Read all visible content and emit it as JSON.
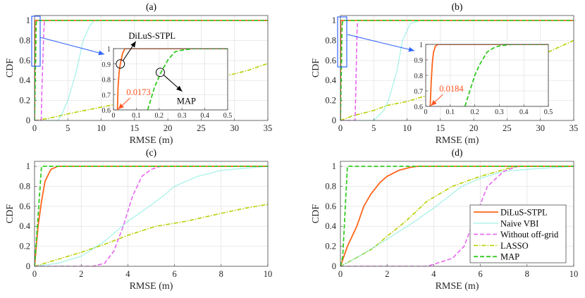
{
  "colors": {
    "DiLuS-STPL": "#ff6419",
    "Naive VBI": "#55e6d6",
    "Without off-grid": "#e866f0",
    "LASSO": "#b9cf00",
    "MAP": "#33cc22",
    "zoom_box": "#3366ff",
    "annotation_red": "#ff5522"
  },
  "chart_data": [
    {
      "type": "line",
      "title": "(a)",
      "xlabel": "RMSE (m)",
      "ylabel": "CDF",
      "xlim": [
        0,
        35
      ],
      "ylim": [
        0,
        1.05
      ],
      "grid": true,
      "xticks": [
        0,
        5,
        10,
        15,
        20,
        25,
        30,
        35
      ],
      "yticks": [
        0,
        0.2,
        0.4,
        0.6,
        0.8,
        1
      ],
      "series": [
        {
          "name": "LASSO",
          "x": [
            0,
            2,
            4,
            6,
            9,
            12,
            15,
            18,
            21,
            25,
            29,
            32,
            35
          ],
          "y": [
            0,
            0.02,
            0.05,
            0.08,
            0.12,
            0.16,
            0.2,
            0.25,
            0.3,
            0.37,
            0.45,
            0.5,
            0.57
          ]
        },
        {
          "name": "Naive VBI",
          "x": [
            0,
            3.5,
            4,
            5,
            6.3,
            7.3,
            8.3,
            9,
            35
          ],
          "y": [
            0,
            0,
            0.05,
            0.2,
            0.5,
            0.8,
            0.95,
            1,
            1
          ]
        },
        {
          "name": "Without off-grid",
          "x": [
            0,
            1.0,
            1.1,
            1.4,
            1.5,
            35
          ],
          "y": [
            0,
            0,
            0.3,
            0.9,
            1,
            1
          ]
        },
        {
          "name": "DiLuS-STPL",
          "x": [
            0,
            0.017,
            0.05,
            35
          ],
          "y": [
            0,
            0.6,
            1,
            1
          ]
        },
        {
          "name": "MAP",
          "x": [
            0,
            0.15,
            0.21,
            0.26,
            0.35,
            35
          ],
          "y": [
            0,
            0.6,
            0.85,
            0.98,
            1,
            1
          ]
        }
      ],
      "inset": {
        "xlim": [
          0,
          0.5
        ],
        "ylim": [
          0.6,
          1
        ],
        "xticks": [
          0,
          0.1,
          0.2,
          0.3,
          0.4,
          0.5
        ],
        "yticks": [
          0.6,
          0.7,
          0.8,
          0.9,
          1
        ],
        "series": [
          {
            "name": "DiLuS-STPL",
            "x": [
              0.0173,
              0.02,
              0.025,
              0.03,
              0.04,
              0.05,
              0.5
            ],
            "y": [
              0.6,
              0.75,
              0.85,
              0.9,
              0.97,
              1,
              1
            ]
          },
          {
            "name": "MAP",
            "x": [
              0.15,
              0.18,
              0.21,
              0.24,
              0.27,
              0.3,
              0.35,
              0.5
            ],
            "y": [
              0.6,
              0.75,
              0.85,
              0.93,
              0.98,
              0.99,
              1,
              1
            ]
          }
        ],
        "annotations": [
          {
            "text": "DiLuS-STPL",
            "target": [
              0.03,
              0.9
            ]
          },
          {
            "text": "MAP",
            "target": [
              0.205,
              0.845
            ]
          },
          {
            "text": "0.0173",
            "target": [
              0.0173,
              0.6
            ]
          }
        ]
      }
    },
    {
      "type": "line",
      "title": "(b)",
      "xlabel": "RMSE (m)",
      "ylabel": "CDF",
      "xlim": [
        0,
        35
      ],
      "ylim": [
        0,
        1.05
      ],
      "grid": true,
      "xticks": [
        0,
        5,
        10,
        15,
        20,
        25,
        30,
        35
      ],
      "yticks": [
        0,
        0.2,
        0.4,
        0.6,
        0.8,
        1
      ],
      "series": [
        {
          "name": "LASSO",
          "x": [
            0,
            2,
            5,
            7,
            10,
            13,
            17,
            22,
            26,
            30,
            35
          ],
          "y": [
            0,
            0.05,
            0.1,
            0.15,
            0.19,
            0.25,
            0.35,
            0.45,
            0.55,
            0.65,
            0.8
          ]
        },
        {
          "name": "Naive VBI",
          "x": [
            0,
            5,
            6.5,
            7.2,
            8.5,
            9.3,
            10.5,
            12,
            35
          ],
          "y": [
            0,
            0,
            0.1,
            0.2,
            0.5,
            0.8,
            0.97,
            1,
            1
          ]
        },
        {
          "name": "Without off-grid",
          "x": [
            0,
            2.2,
            2.3,
            2.5,
            2.6,
            35
          ],
          "y": [
            0,
            0,
            0.3,
            0.9,
            1,
            1
          ]
        },
        {
          "name": "DiLuS-STPL",
          "x": [
            0,
            0.018,
            0.04,
            35
          ],
          "y": [
            0,
            0.6,
            1,
            1
          ]
        },
        {
          "name": "MAP",
          "x": [
            0,
            0.16,
            0.2,
            0.25,
            0.3,
            0.35,
            35
          ],
          "y": [
            0,
            0.6,
            0.8,
            0.95,
            0.98,
            1,
            1
          ]
        }
      ],
      "inset": {
        "xlim": [
          0,
          0.5
        ],
        "ylim": [
          0.6,
          1
        ],
        "xticks": [
          0,
          0.1,
          0.2,
          0.3,
          0.4,
          0.5
        ],
        "yticks": [
          0.6,
          0.7,
          0.8,
          0.9,
          1
        ],
        "series": [
          {
            "name": "DiLuS-STPL",
            "x": [
              0.0184,
              0.022,
              0.027,
              0.032,
              0.04,
              0.05,
              0.5
            ],
            "y": [
              0.6,
              0.75,
              0.88,
              0.95,
              0.99,
              1,
              1
            ]
          },
          {
            "name": "MAP",
            "x": [
              0.16,
              0.18,
              0.2,
              0.22,
              0.25,
              0.28,
              0.3,
              0.35,
              0.5
            ],
            "y": [
              0.6,
              0.7,
              0.8,
              0.87,
              0.95,
              0.98,
              0.99,
              1,
              1
            ]
          }
        ],
        "annotations": [
          {
            "text": "0.0184",
            "target": [
              0.0184,
              0.6
            ]
          }
        ]
      }
    },
    {
      "type": "line",
      "title": "(c)",
      "xlabel": "RMSE (m)",
      "ylabel": "CDF",
      "xlim": [
        0,
        10
      ],
      "ylim": [
        0,
        1.05
      ],
      "grid": true,
      "xticks": [
        0,
        2,
        4,
        6,
        8,
        10
      ],
      "yticks": [
        0,
        0.2,
        0.4,
        0.6,
        0.8,
        1
      ],
      "series": [
        {
          "name": "LASSO",
          "x": [
            0,
            1,
            2,
            3,
            4,
            5.2,
            6.5,
            8,
            9,
            10
          ],
          "y": [
            0,
            0.07,
            0.14,
            0.22,
            0.31,
            0.4,
            0.45,
            0.53,
            0.58,
            0.62
          ]
        },
        {
          "name": "Naive VBI",
          "x": [
            0,
            1,
            2,
            3,
            4,
            4.8,
            5.5,
            6,
            7,
            8,
            9,
            10
          ],
          "y": [
            0,
            0.03,
            0.1,
            0.25,
            0.45,
            0.58,
            0.7,
            0.8,
            0.9,
            0.96,
            0.98,
            1
          ]
        },
        {
          "name": "Without off-grid",
          "x": [
            0,
            2.5,
            3,
            3.4,
            3.8,
            4.2,
            4.6,
            5,
            5.4,
            10
          ],
          "y": [
            0,
            0,
            0.03,
            0.15,
            0.4,
            0.7,
            0.9,
            0.97,
            1,
            1
          ]
        },
        {
          "name": "DiLuS-STPL",
          "x": [
            0,
            0.15,
            0.3,
            0.45,
            0.7,
            1.0,
            10
          ],
          "y": [
            0,
            0.4,
            0.65,
            0.85,
            0.97,
            1,
            1
          ]
        },
        {
          "name": "MAP",
          "x": [
            0,
            0.15,
            0.3,
            10
          ],
          "y": [
            0,
            0.5,
            1,
            1
          ]
        }
      ]
    },
    {
      "type": "line",
      "title": "(d)",
      "xlabel": "RMSE (m)",
      "ylabel": "CDF",
      "xlim": [
        0,
        10
      ],
      "ylim": [
        0,
        1.05
      ],
      "grid": true,
      "xticks": [
        0,
        2,
        4,
        6,
        8,
        10
      ],
      "yticks": [
        0,
        0.2,
        0.4,
        0.6,
        0.8,
        1
      ],
      "series": [
        {
          "name": "LASSO",
          "x": [
            0,
            0.8,
            1.4,
            2,
            2.8,
            3.7,
            4.8,
            6,
            7.2,
            7.6,
            10
          ],
          "y": [
            0,
            0.1,
            0.18,
            0.3,
            0.45,
            0.65,
            0.8,
            0.9,
            0.98,
            1,
            1
          ]
        },
        {
          "name": "Naive VBI",
          "x": [
            0,
            0.8,
            1.5,
            2.2,
            3.2,
            4.1,
            5.2,
            6,
            7,
            8,
            10
          ],
          "y": [
            0,
            0.1,
            0.2,
            0.3,
            0.45,
            0.6,
            0.8,
            0.88,
            0.95,
            0.97,
            1
          ]
        },
        {
          "name": "Without off-grid",
          "x": [
            0,
            3.7,
            4,
            4.8,
            5.3,
            5.8,
            6.3,
            7,
            7.6,
            10
          ],
          "y": [
            0,
            0,
            0.02,
            0.08,
            0.2,
            0.5,
            0.8,
            0.95,
            1,
            1
          ]
        },
        {
          "name": "DiLuS-STPL",
          "x": [
            0,
            0.3,
            0.7,
            1,
            1.3,
            1.7,
            2,
            2.5,
            3,
            3.3,
            10
          ],
          "y": [
            0,
            0.2,
            0.4,
            0.6,
            0.72,
            0.84,
            0.9,
            0.96,
            0.99,
            1,
            1
          ]
        },
        {
          "name": "MAP",
          "x": [
            0,
            0.1,
            0.3,
            10
          ],
          "y": [
            0,
            0.1,
            1,
            1
          ]
        }
      ],
      "legend": {
        "placement": "bottom-right",
        "entries": [
          "DiLuS-STPL",
          "Naive VBI",
          "Without off-grid",
          "LASSO",
          "MAP"
        ]
      }
    }
  ]
}
